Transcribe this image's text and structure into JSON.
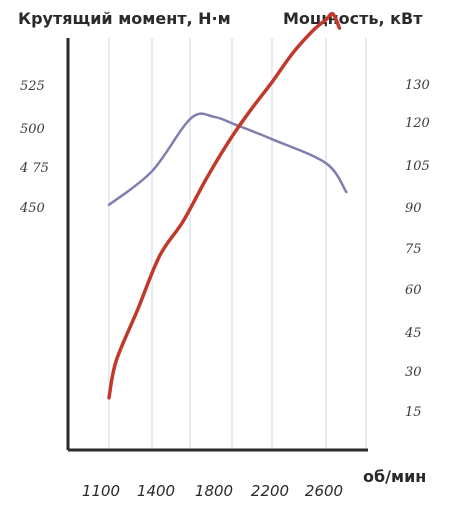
{
  "chart_data": {
    "type": "line",
    "title": "",
    "y_left_label": "Крутящий момент, Н·м",
    "y_right_label": "Мощность, кВт",
    "x_unit": "об/мин",
    "x_ticks": [
      "1100",
      "1400",
      "1800",
      "2200",
      "2600"
    ],
    "y_left_ticks": [
      "525",
      "500",
      "4 75",
      "450"
    ],
    "y_right_ticks": [
      "130",
      "120",
      "105",
      "90",
      "75",
      "60",
      "45",
      "30",
      "15"
    ],
    "series": [
      {
        "axis": "left",
        "color": "#7e7eb0",
        "x": [
          1100,
          1400,
          1650,
          1800,
          1950,
          2200,
          2600,
          2750
        ],
        "y": [
          452,
          473,
          506,
          507,
          502,
          493,
          478,
          460
        ]
      },
      {
        "axis": "right",
        "color": "#c0392b",
        "x": [
          1100,
          1150,
          1300,
          1450,
          1600,
          1750,
          1900,
          2050,
          2200,
          2350,
          2500,
          2600,
          2650,
          2700
        ],
        "y": [
          20,
          33,
          51,
          70,
          82,
          97,
          110,
          121,
          131,
          141,
          149,
          153,
          155,
          150
        ]
      }
    ],
    "grid": "vertical",
    "grid_color": "#cfd8e8",
    "axis_color": "#2a2a2a"
  }
}
